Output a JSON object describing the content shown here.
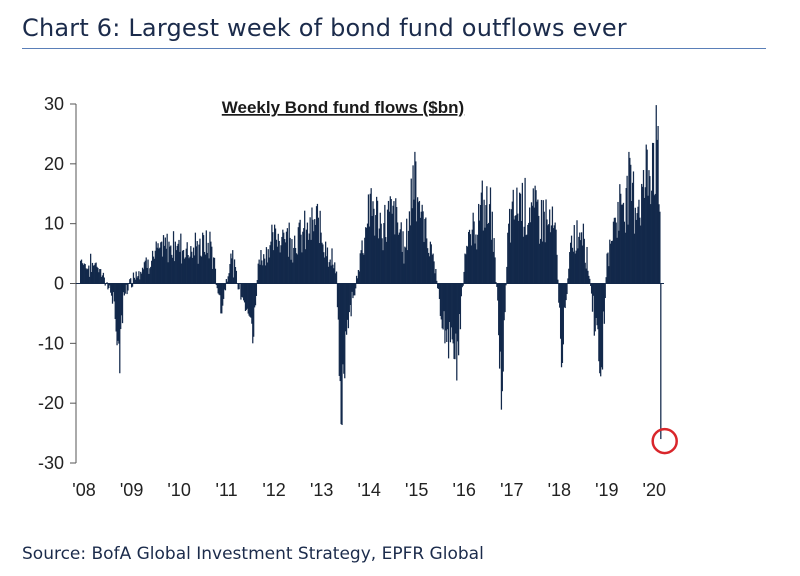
{
  "title": "Chart 6: Largest week of bond fund outflows ever",
  "source": "Source: BofA Global Investment Strategy, EPFR Global",
  "chart_data": {
    "type": "bar",
    "title": "Weekly Bond fund flows ($bn)",
    "ylabel": "",
    "xlabel": "",
    "ylim": [
      -30,
      30
    ],
    "yticks": [
      "30",
      "20",
      "10",
      "0",
      "-10",
      "-20",
      "-30"
    ],
    "xticks": [
      "'08",
      "'09",
      "'10",
      "'11",
      "'12",
      "'13",
      "'14",
      "'15",
      "'16",
      "'17",
      "'18",
      "'19",
      "'20"
    ],
    "series": [
      {
        "color": "#13294b",
        "x_start": "2008-01",
        "x_end": "2020-03",
        "anchors": [
          [
            "2008-01-05",
            4
          ],
          [
            "2008-03-01",
            3
          ],
          [
            "2008-05-01",
            3.5
          ],
          [
            "2008-07-01",
            1
          ],
          [
            "2008-09-15",
            -3
          ],
          [
            "2008-10-25",
            -15
          ],
          [
            "2008-12-01",
            -2
          ],
          [
            "2009-03-01",
            2
          ],
          [
            "2009-06-01",
            4
          ],
          [
            "2009-09-01",
            6
          ],
          [
            "2010-01-01",
            7
          ],
          [
            "2010-05-15",
            6
          ],
          [
            "2010-07-01",
            6.5
          ],
          [
            "2010-10-01",
            7
          ],
          [
            "2010-12-15",
            -5
          ],
          [
            "2011-03-01",
            5
          ],
          [
            "2011-08-15",
            -10
          ],
          [
            "2011-10-01",
            4
          ],
          [
            "2012-01-01",
            7
          ],
          [
            "2012-04-01",
            9
          ],
          [
            "2012-07-01",
            8
          ],
          [
            "2012-10-01",
            9
          ],
          [
            "2013-01-01",
            11
          ],
          [
            "2013-03-01",
            7
          ],
          [
            "2013-05-20",
            2
          ],
          [
            "2013-06-22",
            -23.5
          ],
          [
            "2013-08-01",
            -8
          ],
          [
            "2013-10-01",
            -2
          ],
          [
            "2014-02-01",
            15
          ],
          [
            "2014-05-01",
            10
          ],
          [
            "2014-08-01",
            13
          ],
          [
            "2014-11-01",
            6
          ],
          [
            "2015-01-15",
            22
          ],
          [
            "2015-03-01",
            12
          ],
          [
            "2015-06-01",
            5
          ],
          [
            "2015-09-01",
            -10
          ],
          [
            "2015-12-15",
            -12
          ],
          [
            "2016-02-01",
            5
          ],
          [
            "2016-04-01",
            9
          ],
          [
            "2016-07-01",
            14
          ],
          [
            "2016-09-01",
            12
          ],
          [
            "2016-11-12",
            -18
          ],
          [
            "2017-01-01",
            10
          ],
          [
            "2017-04-01",
            15
          ],
          [
            "2017-07-01",
            13
          ],
          [
            "2017-10-01",
            12
          ],
          [
            "2018-01-01",
            9
          ],
          [
            "2018-02-10",
            -14
          ],
          [
            "2018-05-01",
            8
          ],
          [
            "2018-08-01",
            10
          ],
          [
            "2018-11-01",
            -8
          ],
          [
            "2018-12-20",
            -14
          ],
          [
            "2019-02-01",
            5
          ],
          [
            "2019-04-01",
            11
          ],
          [
            "2019-07-01",
            18
          ],
          [
            "2019-10-01",
            14
          ],
          [
            "2020-01-15",
            23.5
          ],
          [
            "2020-02-20",
            24
          ],
          [
            "2020-03-07",
            12
          ],
          [
            "2020-03-14",
            -13
          ],
          [
            "2020-03-21",
            -26
          ]
        ]
      }
    ],
    "highlight": {
      "x": "2020-03-21",
      "y": -26,
      "color": "#d9262b"
    }
  }
}
